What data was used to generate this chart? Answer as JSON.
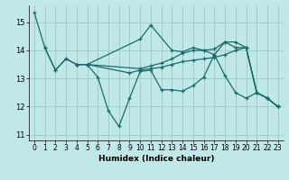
{
  "xlabel": "Humidex (Indice chaleur)",
  "bg_color": "#c0e8e8",
  "grid_color": "#a0cccc",
  "line_color": "#1a6b6a",
  "xlim": [
    -0.5,
    23.5
  ],
  "ylim": [
    10.8,
    15.6
  ],
  "yticks": [
    11,
    12,
    13,
    14,
    15
  ],
  "xticks": [
    0,
    1,
    2,
    3,
    4,
    5,
    6,
    7,
    8,
    9,
    10,
    11,
    12,
    13,
    14,
    15,
    16,
    17,
    18,
    19,
    20,
    21,
    22,
    23
  ],
  "line1_x": [
    0,
    1,
    2,
    3,
    4,
    5,
    6,
    7,
    8,
    9,
    10,
    11,
    12,
    13,
    14,
    15,
    16,
    17,
    18,
    19,
    20,
    21,
    22,
    23
  ],
  "line1_y": [
    15.35,
    14.1,
    13.3,
    13.7,
    13.5,
    13.5,
    13.05,
    11.85,
    11.3,
    12.3,
    13.25,
    13.3,
    12.6,
    12.6,
    12.55,
    12.75,
    13.05,
    13.85,
    13.1,
    12.5,
    12.3,
    12.5,
    12.3,
    12.0
  ],
  "line2_x": [
    1,
    2,
    3,
    4,
    5,
    9,
    10,
    11,
    12,
    13,
    14,
    15,
    16,
    17,
    18,
    19,
    20,
    21,
    22,
    23
  ],
  "line2_y": [
    14.1,
    13.3,
    13.7,
    13.5,
    13.5,
    13.2,
    13.3,
    13.35,
    13.4,
    13.5,
    13.6,
    13.65,
    13.7,
    13.75,
    13.85,
    14.0,
    14.1,
    12.5,
    12.3,
    12.0
  ],
  "line3_x": [
    4,
    5,
    10,
    11,
    13,
    14,
    15,
    16,
    17,
    18,
    19,
    20,
    21,
    22,
    23
  ],
  "line3_y": [
    13.5,
    13.5,
    14.4,
    14.9,
    14.0,
    13.95,
    14.1,
    14.0,
    13.85,
    14.3,
    14.1,
    14.1,
    12.5,
    12.3,
    12.0
  ],
  "line4_x": [
    4,
    5,
    10,
    11,
    12,
    13,
    14,
    15,
    16,
    17,
    18,
    19,
    20,
    21,
    22,
    23
  ],
  "line4_y": [
    13.5,
    13.5,
    13.35,
    13.45,
    13.55,
    13.7,
    13.9,
    14.0,
    14.0,
    14.05,
    14.3,
    14.3,
    14.1,
    12.5,
    12.3,
    12.0
  ]
}
